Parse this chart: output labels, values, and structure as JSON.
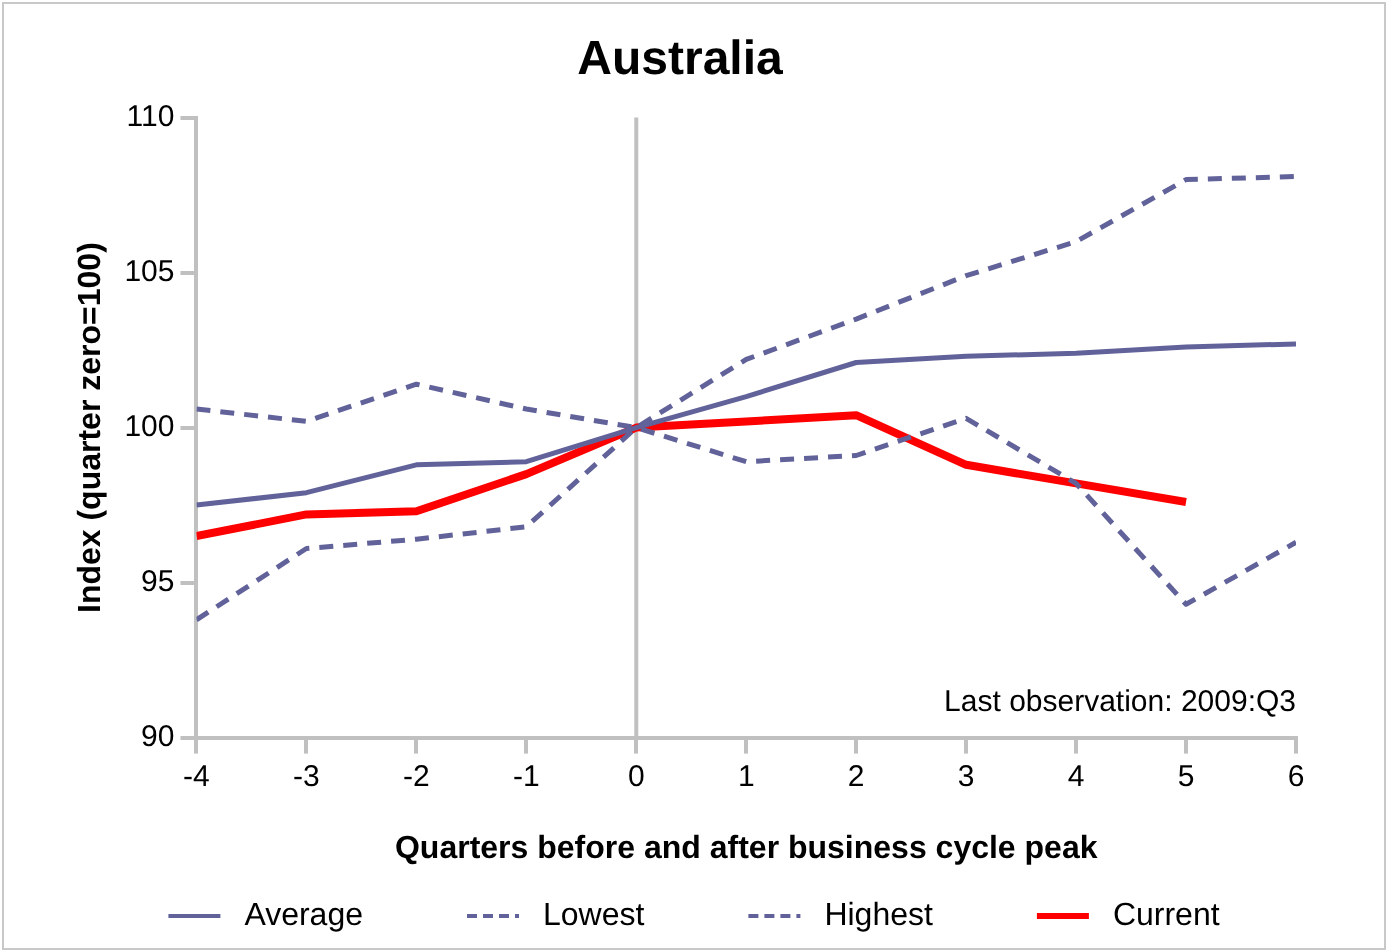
{
  "chart_data": {
    "type": "line",
    "title": "Australia",
    "xlabel": "Quarters before and after business cycle peak",
    "ylabel": "Index (quarter zero=100)",
    "x": [
      -4,
      -3,
      -2,
      -1,
      0,
      1,
      2,
      3,
      4,
      5,
      6
    ],
    "xlim": [
      -4,
      6
    ],
    "xticks": [
      -4,
      -3,
      -2,
      -1,
      0,
      1,
      2,
      3,
      4,
      5,
      6
    ],
    "ylim": [
      90,
      110
    ],
    "yticks": [
      90,
      95,
      100,
      105,
      110
    ],
    "grid": false,
    "legend": "bottom",
    "marker": "none",
    "series": [
      {
        "name": "Average",
        "color": "#62629a",
        "line_style": "solid",
        "values": [
          97.5,
          97.9,
          98.8,
          98.9,
          100,
          101,
          102.1,
          102.3,
          102.4,
          102.6,
          102.7
        ]
      },
      {
        "name": "Lowest",
        "color": "#62629a",
        "line_style": "dashed",
        "values": [
          100.6,
          100.2,
          101.4,
          100.6,
          100,
          98.9,
          99.1,
          100.3,
          98.2,
          94.3,
          96.3
        ]
      },
      {
        "name": "Highest",
        "color": "#62629a",
        "line_style": "dashed",
        "values": [
          93.8,
          96.1,
          96.4,
          96.8,
          100,
          102.2,
          103.5,
          104.9,
          106,
          108,
          108.1
        ]
      },
      {
        "name": "Current",
        "color": "#ff0000",
        "line_style": "solid",
        "values": [
          96.5,
          97.2,
          97.3,
          98.5,
          100,
          100.2,
          100.4,
          98.8,
          98.2,
          97.6,
          null
        ]
      }
    ],
    "ref_lines": [
      {
        "axis": "x",
        "value": 0,
        "color": "#c0c0c0"
      }
    ],
    "annotations": [
      "Last observation: 2009:Q3"
    ]
  }
}
